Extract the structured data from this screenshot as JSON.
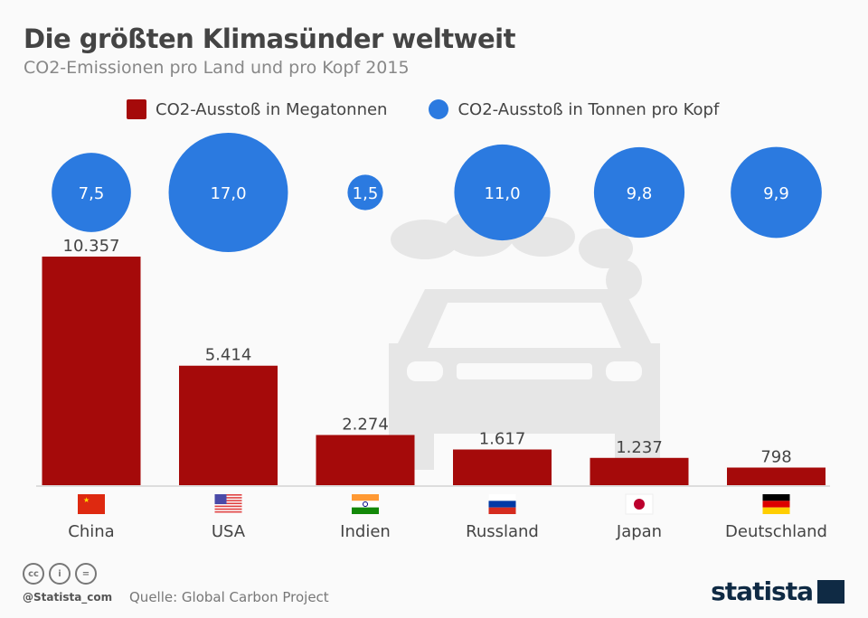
{
  "title": "Die größten Klimasünder weltweit",
  "subtitle": "CO2-Emissionen pro Land und pro Kopf 2015",
  "legend": {
    "bars": "CO2-Ausstoß in Megatonnen",
    "circles": "CO2-Ausstoß in Tonnen pro Kopf"
  },
  "colors": {
    "bar": "#a50a0a",
    "circle": "#2b7ae0",
    "background_icon": "#e6e6e6"
  },
  "background_icon": "car-with-smoke-icon",
  "chart_data": {
    "type": "bar",
    "categories": [
      "China",
      "USA",
      "Indien",
      "Russland",
      "Japan",
      "Deutschland"
    ],
    "series": [
      {
        "name": "CO2-Ausstoß in Megatonnen",
        "values": [
          10357,
          5414,
          2274,
          1617,
          1237,
          798
        ],
        "labels": [
          "10.357",
          "5.414",
          "2.274",
          "1.617",
          "1.237",
          "798"
        ]
      },
      {
        "name": "CO2-Ausstoß in Tonnen pro Kopf",
        "values": [
          7.5,
          17.0,
          1.5,
          11.0,
          9.8,
          9.9
        ],
        "labels": [
          "7,5",
          "17,0",
          "1,5",
          "11,0",
          "9,8",
          "9,9"
        ],
        "shape": "bubble"
      }
    ],
    "flags": [
      "china-flag",
      "usa-flag",
      "india-flag",
      "russia-flag",
      "japan-flag",
      "germany-flag"
    ],
    "grid": false
  },
  "footer": {
    "source": "Quelle: Global Carbon Project",
    "handle": "@Statista_com",
    "license_icons": [
      "cc-icon",
      "by-icon",
      "nd-icon"
    ],
    "logo": "statista"
  }
}
